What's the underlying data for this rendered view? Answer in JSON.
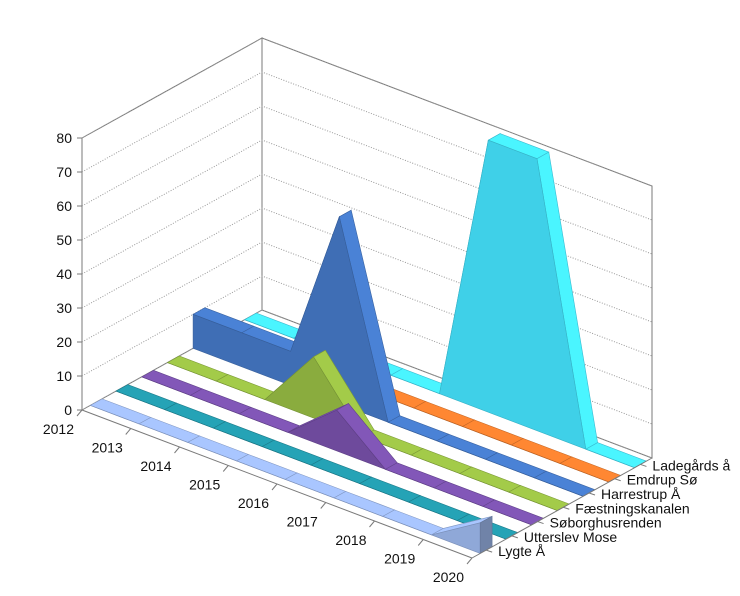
{
  "chart_data": {
    "type": "area",
    "subtype": "3d-area",
    "title": "",
    "xlabel": "",
    "ylabel": "",
    "ylim": [
      0,
      80
    ],
    "yticks": [
      0,
      10,
      20,
      30,
      40,
      50,
      60,
      70,
      80
    ],
    "grid": true,
    "legend": "none",
    "categories": [
      "2012",
      "2013",
      "2014",
      "2015",
      "2016",
      "2017",
      "2018",
      "2019",
      "2020"
    ],
    "series": [
      {
        "name": "Lygte Å",
        "color": "#8fa8d8",
        "values": [
          0,
          0,
          0,
          0,
          0,
          0,
          0,
          0,
          9
        ]
      },
      {
        "name": "Utterslev Mose",
        "color": "#1f8a9a",
        "values": [
          0,
          0,
          0,
          0,
          0,
          0,
          0,
          0,
          0
        ]
      },
      {
        "name": "Søborghusrenden",
        "color": "#6e4a9c",
        "values": [
          0,
          0,
          0,
          0,
          12,
          0,
          0,
          0,
          0
        ]
      },
      {
        "name": "Fæstningskanalen",
        "color": "#8aac3e",
        "values": [
          0,
          0,
          0,
          18,
          0,
          0,
          0,
          0,
          0
        ]
      },
      {
        "name": "Harrestrup Å",
        "color": "#3f6eb5",
        "values": [
          10,
          10,
          10,
          55,
          0,
          0,
          0,
          0,
          0
        ]
      },
      {
        "name": "Emdrup Sø",
        "color": "#d9722a",
        "values": [
          0,
          0,
          0,
          0,
          0,
          0,
          0,
          0,
          0
        ]
      },
      {
        "name": "Ladegårds å",
        "color": "#3fd0e8",
        "values": [
          0,
          0,
          0,
          0,
          0,
          80,
          80,
          0,
          0
        ]
      }
    ]
  }
}
